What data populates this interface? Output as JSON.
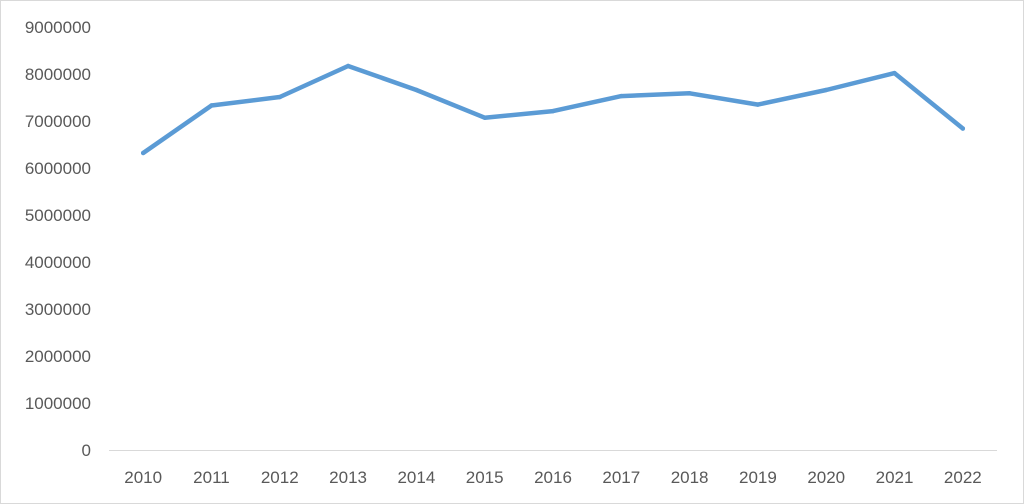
{
  "chart_data": {
    "type": "line",
    "title": "",
    "xlabel": "",
    "ylabel": "",
    "categories": [
      "2010",
      "2011",
      "2012",
      "2013",
      "2014",
      "2015",
      "2016",
      "2017",
      "2018",
      "2019",
      "2020",
      "2021",
      "2022"
    ],
    "series": [
      {
        "values": [
          6320000,
          7330000,
          7510000,
          8170000,
          7660000,
          7070000,
          7210000,
          7530000,
          7590000,
          7350000,
          7660000,
          8020000,
          6840000
        ],
        "color": "#5b9bd5"
      }
    ],
    "ylim": [
      0,
      9000000
    ],
    "yticks": [
      "0",
      "1000000",
      "2000000",
      "3000000",
      "4000000",
      "5000000",
      "6000000",
      "7000000",
      "8000000",
      "9000000"
    ],
    "grid": false,
    "legend": "none",
    "axis_color": "#d9d9d9",
    "label_color": "#595959"
  }
}
